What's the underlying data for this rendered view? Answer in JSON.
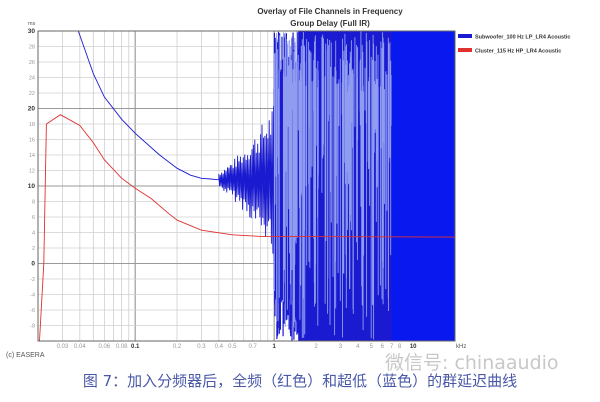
{
  "chart_data": {
    "type": "line",
    "title": "Overlay of File Channels in Frequency",
    "subtitle": "Group Delay (Full IR)",
    "ylabel": "ms",
    "xlabel": "kHz",
    "xscale": "log",
    "xlim": [
      0.02,
      20
    ],
    "ylim": [
      -10,
      30
    ],
    "grid": true,
    "legend_placement": "right",
    "yticks": [
      30,
      28,
      26,
      24,
      22,
      20,
      18,
      16,
      14,
      12,
      10,
      8,
      6,
      4,
      2,
      0,
      -2,
      -4,
      -6,
      -8
    ],
    "xticks": [
      {
        "v": 0.03,
        "label": "0.03"
      },
      {
        "v": 0.04,
        "label": "0.04"
      },
      {
        "v": 0.06,
        "label": "0.06"
      },
      {
        "v": 0.08,
        "label": "0.08"
      },
      {
        "v": 0.1,
        "label": "0.1"
      },
      {
        "v": 0.2,
        "label": "0.2"
      },
      {
        "v": 0.3,
        "label": "0.3"
      },
      {
        "v": 0.4,
        "label": "0.4"
      },
      {
        "v": 0.5,
        "label": "0.5"
      },
      {
        "v": 0.7,
        "label": "0.7"
      },
      {
        "v": 1,
        "label": "1"
      },
      {
        "v": 2,
        "label": "2"
      },
      {
        "v": 3,
        "label": "3"
      },
      {
        "v": 4,
        "label": "4"
      },
      {
        "v": 5,
        "label": "5"
      },
      {
        "v": 6,
        "label": "6"
      },
      {
        "v": 7,
        "label": "7"
      },
      {
        "v": 8,
        "label": "8"
      },
      {
        "v": 10,
        "label": "10"
      }
    ],
    "series": [
      {
        "name": "Subwoofer_100 Hz LP_LR4 Acoustic",
        "color": "#1a1ad0",
        "points": [
          [
            0.039,
            30
          ],
          [
            0.05,
            24.5
          ],
          [
            0.06,
            21.5
          ],
          [
            0.08,
            18.6
          ],
          [
            0.1,
            16.8
          ],
          [
            0.15,
            14
          ],
          [
            0.2,
            12.3
          ],
          [
            0.25,
            11.4
          ],
          [
            0.3,
            11
          ],
          [
            0.35,
            10.9
          ],
          [
            0.4,
            10.8
          ]
        ],
        "note_region": "oscillating from 0.4 kHz, spanning full range -10..30 above ~1 kHz, solid fill above ~7 kHz"
      },
      {
        "name": "Cluster_115 Hz HP_LR4 Acoustic",
        "color": "#e03030",
        "points": [
          [
            0.0205,
            -10
          ],
          [
            0.022,
            0
          ],
          [
            0.023,
            18
          ],
          [
            0.029,
            19.2
          ],
          [
            0.04,
            17.8
          ],
          [
            0.05,
            15.6
          ],
          [
            0.06,
            13.4
          ],
          [
            0.08,
            11
          ],
          [
            0.1,
            9.7
          ],
          [
            0.13,
            8.4
          ],
          [
            0.17,
            6.6
          ],
          [
            0.2,
            5.6
          ],
          [
            0.3,
            4.3
          ],
          [
            0.5,
            3.7
          ],
          [
            0.8,
            3.5
          ],
          [
            1,
            3.5
          ],
          [
            20,
            3.4
          ]
        ]
      }
    ]
  },
  "credit": "(c) EASERA",
  "caption": "图 7：加入分频器后，全频（红色）和超低（蓝色）的群延迟曲线",
  "watermark": "微信号: chinaaudio"
}
